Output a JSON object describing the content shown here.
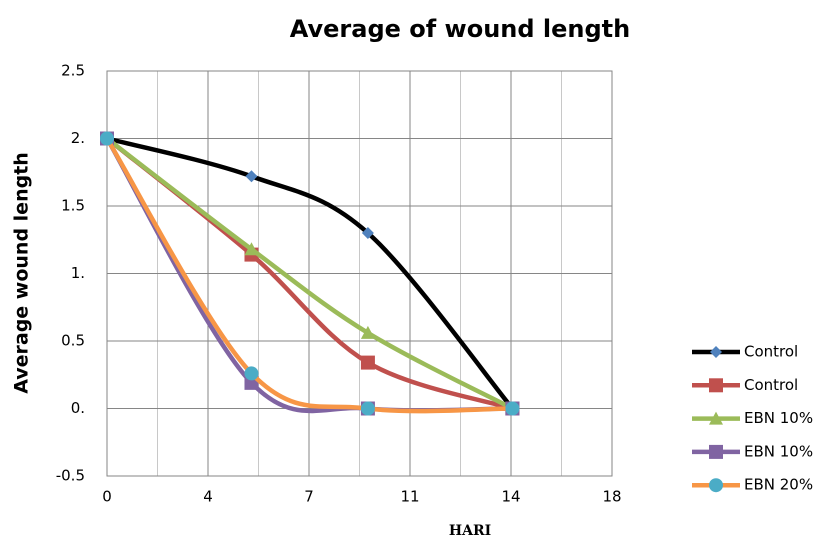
{
  "chart_data": {
    "type": "line",
    "title": "Average of wound length",
    "x_label": "HARI",
    "y_label": "Average wound length",
    "x": [
      0,
      5.15,
      9.3,
      14.45
    ],
    "series": [
      {
        "name": "Control",
        "color": "#000000",
        "marker": "diamond",
        "marker_color": "#4f81bd",
        "values": [
          2,
          1.72,
          1.3,
          0
        ]
      },
      {
        "name": "Control",
        "color": "#c0504d",
        "marker": "square",
        "marker_color": "#c0504d",
        "values": [
          2,
          1.14,
          0.34,
          0
        ]
      },
      {
        "name": "EBN 10%",
        "color": "#9bbb59",
        "marker": "triangle",
        "marker_color": "#9bbb59",
        "values": [
          2,
          1.18,
          0.56,
          0
        ]
      },
      {
        "name": "EBN 10%",
        "color": "#8064a2",
        "marker": "square",
        "marker_color": "#8064a2",
        "values": [
          2,
          0.19,
          0,
          0
        ]
      },
      {
        "name": "EBN 20%",
        "color": "#f79646",
        "marker": "circle",
        "marker_color": "#4bacc6",
        "values": [
          2,
          0.26,
          0,
          0
        ]
      }
    ],
    "xlim": [
      0,
      18
    ],
    "xticks": [
      0,
      {
        "value": 3.6,
        "label": "4"
      },
      {
        "value": 7.2,
        "label": "7"
      },
      {
        "value": 10.8,
        "label": "11"
      },
      {
        "value": 14.4,
        "label": "14"
      },
      18
    ],
    "ylim": [
      -0.5,
      2.5
    ],
    "yticks": [
      -0.5,
      {
        "value": 0,
        "label": "0."
      },
      0.5,
      {
        "value": 1,
        "label": "1."
      },
      1.5,
      {
        "value": 2,
        "label": "2."
      },
      2.5
    ],
    "grid": true,
    "legend": "right",
    "smooth": true
  }
}
